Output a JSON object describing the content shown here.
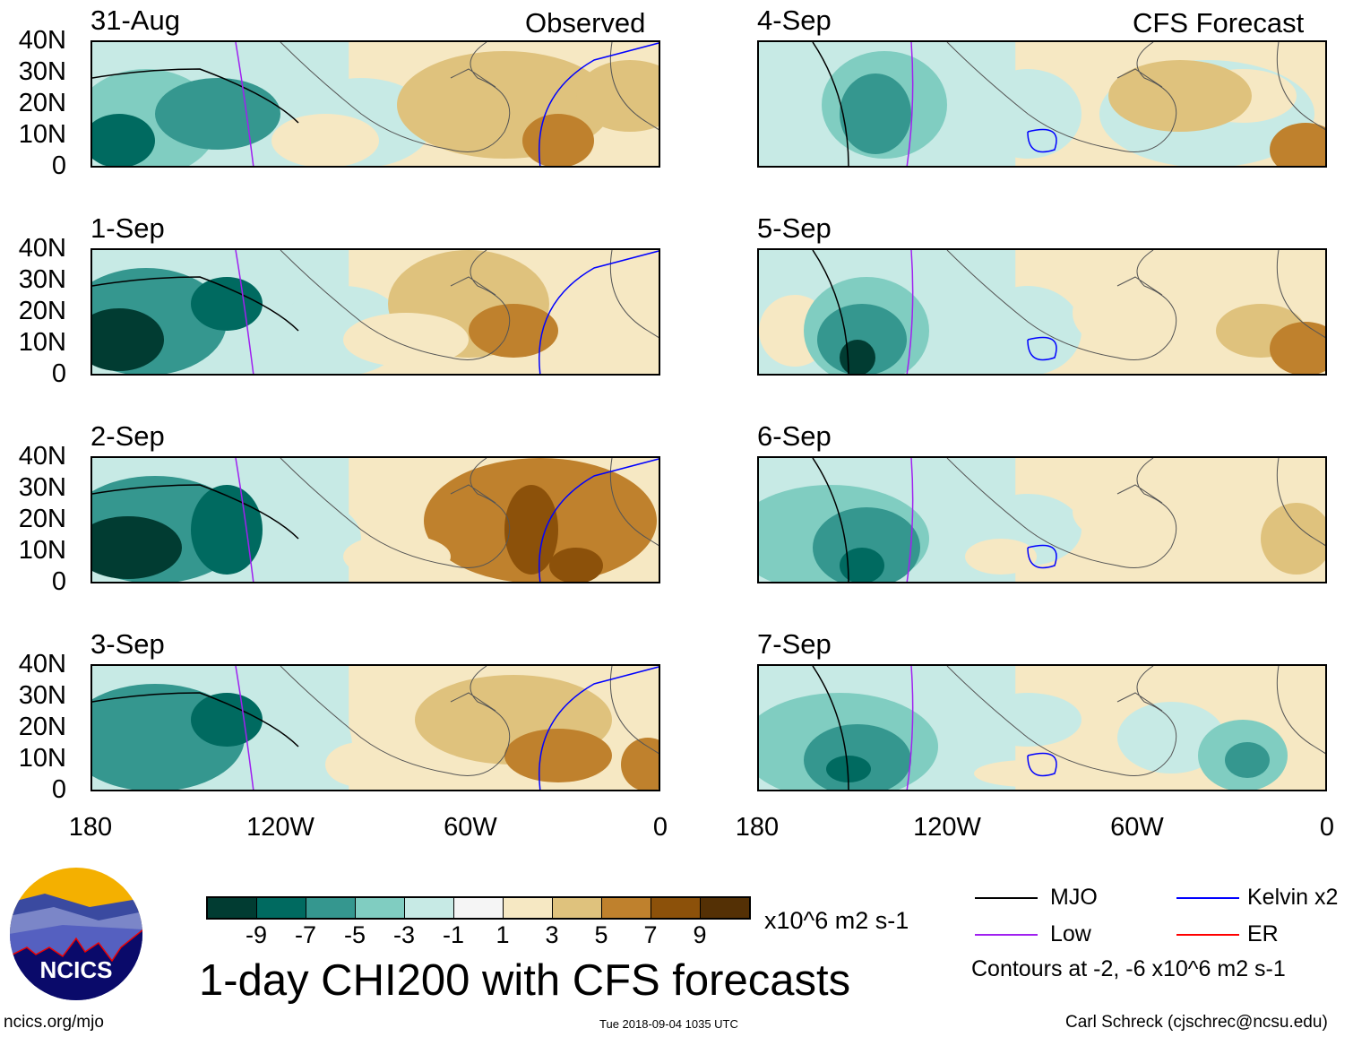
{
  "headers": {
    "observed": "Observed",
    "forecast": "CFS Forecast"
  },
  "panels": {
    "left": [
      "31-Aug",
      "1-Sep",
      "2-Sep",
      "3-Sep"
    ],
    "right": [
      "4-Sep",
      "5-Sep",
      "6-Sep",
      "7-Sep"
    ]
  },
  "lat_labels": [
    "40N",
    "30N",
    "20N",
    "10N",
    "0"
  ],
  "lon_labels": [
    "180",
    "120W",
    "60W",
    "0"
  ],
  "colorbar": {
    "colors": [
      "#013c32",
      "#006a60",
      "#35978f",
      "#80cdc1",
      "#c7eae5",
      "#f5f5f5",
      "#f6e8c3",
      "#dfc27d",
      "#bf812d",
      "#8c510a",
      "#543005"
    ],
    "ticks": [
      "-9",
      "-7",
      "-5",
      "-3",
      "-1",
      "1",
      "3",
      "5",
      "7",
      "9"
    ],
    "units": "x10^6 m2 s-1"
  },
  "title": "1-day CHI200 with CFS forecasts",
  "legend": {
    "items": [
      {
        "label": "MJO",
        "color": "#000000"
      },
      {
        "label": "Kelvin x2",
        "color": "#0000ff"
      },
      {
        "label": "Low",
        "color": "#a020f0"
      },
      {
        "label": "ER",
        "color": "#ff0000"
      }
    ],
    "contours": "Contours at -2, -6 x10^6 m2 s-1"
  },
  "logo": {
    "text": "NCICS"
  },
  "footer": {
    "url": "ncics.org/mjo",
    "timestamp": "Tue 2018-09-04 1035 UTC",
    "author": "Carl Schreck (cjschrec@ncsu.edu)"
  }
}
